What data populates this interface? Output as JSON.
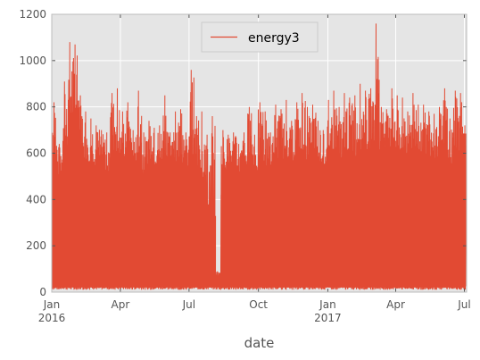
{
  "chart_data": {
    "type": "line",
    "title": "",
    "xlabel": "date",
    "ylabel": "",
    "ylim": [
      0,
      1200
    ],
    "xlim": [
      "2016-01-01",
      "2017-07-04"
    ],
    "yticks": [
      0,
      200,
      400,
      600,
      800,
      1000,
      1200
    ],
    "ytick_labels": [
      "0",
      "200",
      "400",
      "600",
      "800",
      "1000",
      "1200"
    ],
    "xticks": [
      {
        "date": "2016-01-01",
        "label": "Jan",
        "sublabel": "2016"
      },
      {
        "date": "2016-04-01",
        "label": "Apr",
        "sublabel": ""
      },
      {
        "date": "2016-07-01",
        "label": "Jul",
        "sublabel": ""
      },
      {
        "date": "2016-10-01",
        "label": "Oct",
        "sublabel": ""
      },
      {
        "date": "2017-01-01",
        "label": "Jan",
        "sublabel": "2017"
      },
      {
        "date": "2017-04-01",
        "label": "Apr",
        "sublabel": ""
      },
      {
        "date": "2017-07-01",
        "label": "Jul",
        "sublabel": ""
      }
    ],
    "grid": true,
    "legend_position": "upper center",
    "series": [
      {
        "name": "energy3",
        "color": "#e24a33",
        "baseline": 20,
        "x": [
          "2016-01-01",
          "2016-01-08",
          "2016-01-15",
          "2016-01-22",
          "2016-01-29",
          "2016-02-05",
          "2016-02-12",
          "2016-02-19",
          "2016-02-26",
          "2016-03-04",
          "2016-03-11",
          "2016-03-18",
          "2016-03-25",
          "2016-04-01",
          "2016-04-08",
          "2016-04-15",
          "2016-04-22",
          "2016-04-29",
          "2016-05-06",
          "2016-05-13",
          "2016-05-20",
          "2016-05-27",
          "2016-06-03",
          "2016-06-10",
          "2016-06-17",
          "2016-06-24",
          "2016-07-01",
          "2016-07-08",
          "2016-07-15",
          "2016-07-22",
          "2016-07-29",
          "2016-08-05",
          "2016-08-12",
          "2016-08-19",
          "2016-08-26",
          "2016-09-02",
          "2016-09-09",
          "2016-09-16",
          "2016-09-23",
          "2016-09-30",
          "2016-10-07",
          "2016-10-14",
          "2016-10-21",
          "2016-10-28",
          "2016-11-04",
          "2016-11-11",
          "2016-11-18",
          "2016-11-25",
          "2016-12-02",
          "2016-12-09",
          "2016-12-16",
          "2016-12-23",
          "2016-12-30",
          "2017-01-06",
          "2017-01-13",
          "2017-01-20",
          "2017-01-27",
          "2017-02-03",
          "2017-02-10",
          "2017-02-17",
          "2017-02-24",
          "2017-03-03",
          "2017-03-10",
          "2017-03-17",
          "2017-03-24",
          "2017-03-31",
          "2017-04-07",
          "2017-04-14",
          "2017-04-21",
          "2017-04-28",
          "2017-05-05",
          "2017-05-12",
          "2017-05-19",
          "2017-05-26",
          "2017-06-02",
          "2017-06-09",
          "2017-06-16",
          "2017-06-23",
          "2017-06-30"
        ],
        "peak": [
          820,
          640,
          910,
          1080,
          1070,
          850,
          780,
          750,
          720,
          700,
          690,
          860,
          880,
          780,
          820,
          700,
          870,
          690,
          740,
          710,
          720,
          850,
          690,
          780,
          790,
          690,
          960,
          760,
          780,
          680,
          760,
          90,
          700,
          680,
          690,
          640,
          690,
          800,
          680,
          820,
          780,
          690,
          810,
          790,
          830,
          740,
          820,
          860,
          800,
          810,
          740,
          700,
          830,
          870,
          800,
          860,
          840,
          850,
          900,
          870,
          880,
          1160,
          800,
          790,
          880,
          850,
          840,
          780,
          860,
          810,
          810,
          780,
          770,
          800,
          880,
          750,
          870,
          860,
          720
        ],
        "fill_top": [
          450,
          430,
          450,
          460,
          440,
          450,
          450,
          440,
          450,
          430,
          430,
          450,
          440,
          460,
          450,
          440,
          440,
          420,
          450,
          450,
          440,
          440,
          450,
          450,
          430,
          440,
          400,
          420,
          300,
          80,
          60,
          60,
          420,
          450,
          460,
          430,
          440,
          460,
          410,
          400,
          420,
          470,
          450,
          460,
          440,
          470,
          450,
          460,
          450,
          480,
          470,
          450,
          440,
          440,
          460,
          470,
          460,
          440,
          450,
          460,
          470,
          480,
          500,
          480,
          470,
          460,
          450,
          470,
          450,
          460,
          450,
          440,
          460,
          450,
          470,
          440,
          460,
          460,
          440
        ]
      }
    ]
  }
}
